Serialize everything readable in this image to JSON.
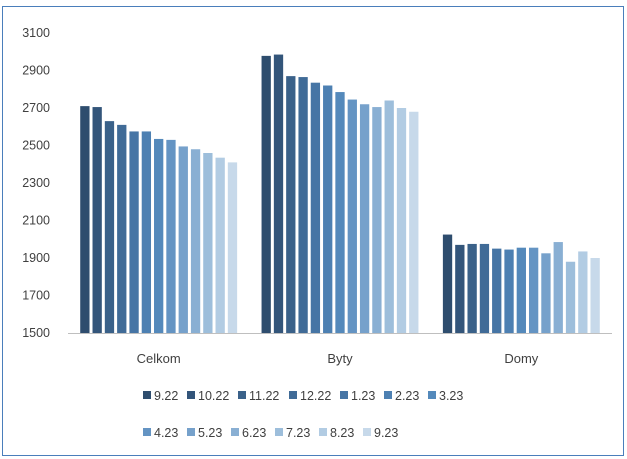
{
  "chart_data": {
    "type": "bar",
    "title": "",
    "xlabel": "",
    "ylabel": "",
    "ylim": [
      1500,
      3100
    ],
    "yticks": [
      1500,
      1700,
      1900,
      2100,
      2300,
      2500,
      2700,
      2900,
      3100
    ],
    "grid": false,
    "legend_position": "bottom",
    "categories": [
      "Celkom",
      "Byty",
      "Domy"
    ],
    "series": [
      {
        "name": "9.22",
        "color": "#2e4d6e",
        "values": [
          2710,
          2978,
          2025
        ]
      },
      {
        "name": "10.22",
        "color": "#33557a",
        "values": [
          2705,
          2985,
          1970
        ]
      },
      {
        "name": "11.22",
        "color": "#3a6189",
        "values": [
          2630,
          2870,
          1975
        ]
      },
      {
        "name": "12.22",
        "color": "#406b97",
        "values": [
          2610,
          2865,
          1975
        ]
      },
      {
        "name": "1.23",
        "color": "#4675a5",
        "values": [
          2575,
          2835,
          1950
        ]
      },
      {
        "name": "2.23",
        "color": "#4d80b2",
        "values": [
          2575,
          2820,
          1945
        ]
      },
      {
        "name": "3.23",
        "color": "#5489bb",
        "values": [
          2535,
          2785,
          1955
        ]
      },
      {
        "name": "4.23",
        "color": "#6494c3",
        "values": [
          2530,
          2745,
          1955
        ]
      },
      {
        "name": "5.23",
        "color": "#76a1cb",
        "values": [
          2495,
          2720,
          1925
        ]
      },
      {
        "name": "6.23",
        "color": "#89afd3",
        "values": [
          2480,
          2705,
          1985
        ]
      },
      {
        "name": "7.23",
        "color": "#9dbedb",
        "values": [
          2460,
          2740,
          1880
        ]
      },
      {
        "name": "8.23",
        "color": "#b2cce3",
        "values": [
          2435,
          2700,
          1935
        ]
      },
      {
        "name": "9.23",
        "color": "#c7d9ea",
        "values": [
          2410,
          2680,
          1900
        ]
      }
    ]
  }
}
